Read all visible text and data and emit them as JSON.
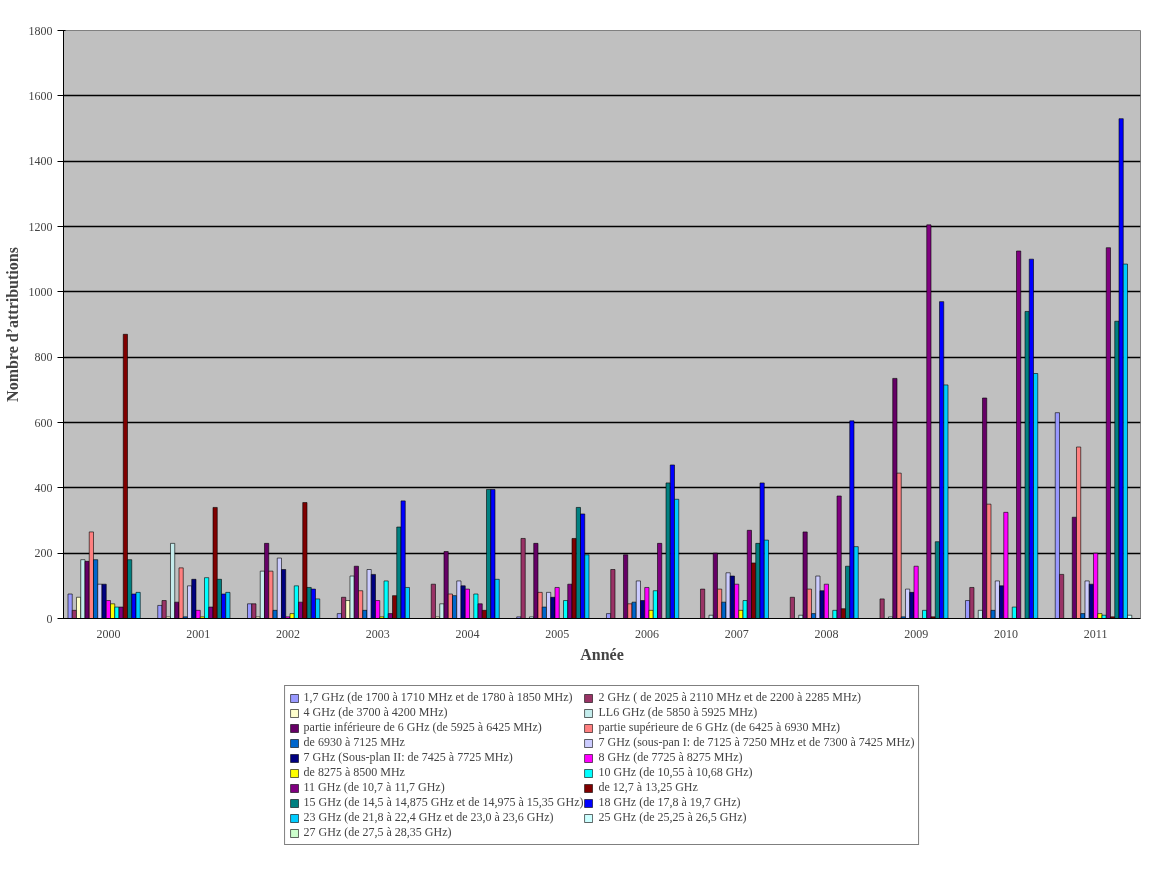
{
  "chart_data": {
    "type": "bar",
    "xlabel": "Année",
    "ylabel": "Nombre d’attributions",
    "categories": [
      "2000",
      "2001",
      "2002",
      "2003",
      "2004",
      "2005",
      "2006",
      "2007",
      "2008",
      "2009",
      "2010",
      "2011"
    ],
    "ylim": [
      0,
      1800
    ],
    "yticks": [
      0,
      200,
      400,
      600,
      800,
      1000,
      1200,
      1400,
      1600,
      1800
    ],
    "grid": "y",
    "legend": "bottom",
    "series": [
      {
        "name": "1,7 GHz (de 1700 à 1710 MHz et de 1780 à 1850 MHz)",
        "color": "#9999ff",
        "values": [
          75,
          40,
          45,
          15,
          0,
          5,
          15,
          0,
          0,
          0,
          55,
          630
        ]
      },
      {
        "name": "2 GHz ( de 2025 à 2110 MHz et de 2200 à 2285 MHz)",
        "color": "#993366",
        "values": [
          25,
          55,
          45,
          65,
          105,
          245,
          150,
          90,
          65,
          60,
          95,
          135
        ]
      },
      {
        "name": "4 GHz (de 3700 à 4200 MHz)",
        "color": "#ffffcc",
        "values": [
          65,
          5,
          5,
          55,
          5,
          0,
          0,
          0,
          0,
          0,
          0,
          0
        ]
      },
      {
        "name": "LL6 GHz (de 5850 à 5925 MHz)",
        "color": "#c4ecec",
        "values": [
          180,
          230,
          145,
          130,
          45,
          5,
          0,
          10,
          10,
          5,
          25,
          0
        ]
      },
      {
        "name": "partie inférieure de 6 GHz (de 5925 à 6425 MHz)",
        "color": "#660066",
        "values": [
          175,
          50,
          230,
          160,
          205,
          230,
          195,
          200,
          265,
          735,
          675,
          310
        ]
      },
      {
        "name": "partie supérieure de 6 GHz (de 6425 à 6930 MHz)",
        "color": "#ff8080",
        "values": [
          265,
          155,
          145,
          85,
          75,
          80,
          45,
          90,
          90,
          445,
          350,
          525
        ]
      },
      {
        "name": "de 6930 à 7125 MHz",
        "color": "#0066cc",
        "values": [
          180,
          5,
          25,
          25,
          70,
          35,
          50,
          50,
          15,
          5,
          25,
          15
        ]
      },
      {
        "name": "7 GHz (sous-pan I: de 7125 à 7250 MHz et de 7300 à 7425 MHz)",
        "color": "#ccccff",
        "values": [
          105,
          100,
          185,
          150,
          115,
          80,
          115,
          140,
          130,
          90,
          115,
          115
        ]
      },
      {
        "name": "7 GHz (Sous-plan II: de 7425 à 7725 MHz)",
        "color": "#000080",
        "values": [
          105,
          120,
          150,
          135,
          100,
          65,
          55,
          130,
          85,
          80,
          100,
          105
        ]
      },
      {
        "name": "8 GHz (de 7725 à 8275 MHz)",
        "color": "#ff00ff",
        "values": [
          55,
          25,
          5,
          55,
          90,
          95,
          95,
          105,
          105,
          160,
          325,
          200
        ]
      },
      {
        "name": "de 8275 à 8500 MHz",
        "color": "#ffff00",
        "values": [
          45,
          5,
          15,
          5,
          0,
          0,
          25,
          25,
          0,
          0,
          0,
          15
        ]
      },
      {
        "name": "10 GHz (de 10,55 à 10,68 GHz)",
        "color": "#00ffff",
        "values": [
          35,
          125,
          100,
          115,
          75,
          55,
          85,
          55,
          25,
          25,
          35,
          10
        ]
      },
      {
        "name": "11 GHz (de 10,7 à 11,7 GHz)",
        "color": "#800080",
        "values": [
          35,
          35,
          50,
          15,
          45,
          105,
          230,
          270,
          375,
          1205,
          1125,
          1135
        ]
      },
      {
        "name": "de 12,7 à 13,25 GHz",
        "color": "#800000",
        "values": [
          870,
          340,
          355,
          70,
          25,
          245,
          0,
          170,
          30,
          5,
          0,
          5
        ]
      },
      {
        "name": "15 GHz (de 14,5 à 14,875 GHz et de 14,975 à 15,35 GHz)",
        "color": "#008080",
        "values": [
          180,
          120,
          95,
          280,
          395,
          340,
          415,
          230,
          160,
          235,
          940,
          910
        ]
      },
      {
        "name": "18 GHz (de 17,8 à 19,7 GHz)",
        "color": "#0000ff",
        "values": [
          75,
          75,
          90,
          360,
          395,
          320,
          470,
          415,
          605,
          970,
          1100,
          1530
        ]
      },
      {
        "name": "23 GHz (de 21,8 à 22,4 GHz et de 23,0 à 23,6 GHz)",
        "color": "#00ccff",
        "values": [
          80,
          80,
          60,
          95,
          120,
          195,
          365,
          240,
          220,
          715,
          750,
          1085
        ]
      },
      {
        "name": "25 GHz (de 25,25 à 26,5 GHz)",
        "color": "#ccffff",
        "values": [
          0,
          0,
          0,
          0,
          0,
          0,
          0,
          0,
          0,
          0,
          0,
          10
        ]
      },
      {
        "name": "27 GHz (de 27,5 à 28,35 GHz)",
        "color": "#ccffcc",
        "values": [
          0,
          0,
          0,
          0,
          0,
          0,
          0,
          0,
          0,
          0,
          0,
          0
        ]
      }
    ]
  }
}
